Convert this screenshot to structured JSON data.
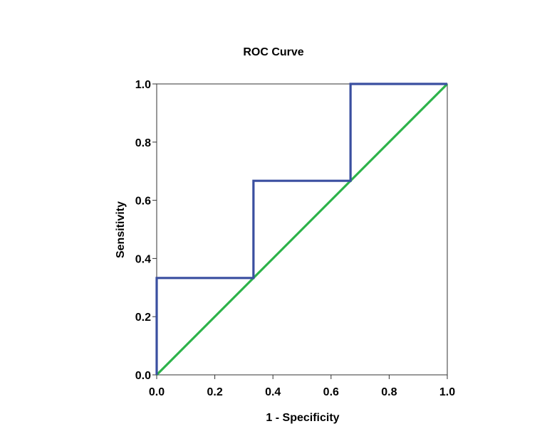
{
  "chart_data": {
    "type": "line",
    "title": "ROC Curve",
    "xlabel": "1 - Specificity",
    "ylabel": "Sensitivity",
    "xlim": [
      0,
      1
    ],
    "ylim": [
      0,
      1
    ],
    "x_ticks": [
      "0.0",
      "0.2",
      "0.4",
      "0.6",
      "0.8",
      "1.0"
    ],
    "y_ticks": [
      "0.0",
      "0.2",
      "0.4",
      "0.6",
      "0.8",
      "1.0"
    ],
    "grid": false,
    "legend": "none",
    "series": [
      {
        "color": "#3a4fa0",
        "style": "step",
        "points": [
          [
            0.0,
            0.0
          ],
          [
            0.0,
            0.333
          ],
          [
            0.333,
            0.333
          ],
          [
            0.333,
            0.667
          ],
          [
            0.667,
            0.667
          ],
          [
            0.667,
            1.0
          ],
          [
            1.0,
            1.0
          ]
        ]
      },
      {
        "color": "#2db34a",
        "style": "reference-line",
        "points": [
          [
            0.0,
            0.0
          ],
          [
            1.0,
            1.0
          ]
        ]
      }
    ]
  }
}
